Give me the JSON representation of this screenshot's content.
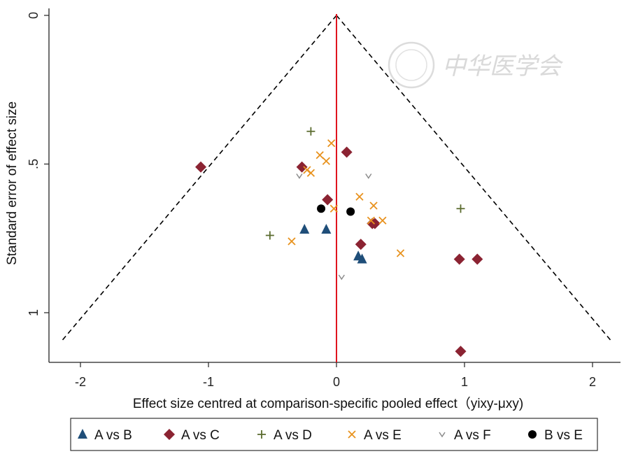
{
  "chart_data": {
    "type": "scatter",
    "title": "",
    "xlabel": "Effect size centred at comparison-specific pooled effect（yixy-μxy)",
    "ylabel": "Standard error of effect size",
    "xlim": [
      -2.2,
      2.2
    ],
    "ylim": [
      0,
      1.17
    ],
    "y_reversed": true,
    "x_ticks": [
      {
        "v": -2,
        "label": "-2"
      },
      {
        "v": -1,
        "label": "-1"
      },
      {
        "v": 0,
        "label": "0"
      },
      {
        "v": 1,
        "label": "1"
      },
      {
        "v": 2,
        "label": "2"
      }
    ],
    "y_ticks": [
      {
        "v": 0,
        "label": "0"
      },
      {
        "v": 0.5,
        "label": ".5"
      },
      {
        "v": 1,
        "label": "1"
      }
    ],
    "reference_line": {
      "x": 0,
      "color": "#e0141e"
    },
    "funnel": {
      "apex": [
        0,
        0
      ],
      "base_se": 1.1,
      "z": 1.96,
      "style": "dashed"
    },
    "legend_position": "bottom",
    "watermark": "中华医学会",
    "series": [
      {
        "name": "A vs B",
        "marker": "triangle",
        "color": "#1f4e79",
        "points": [
          [
            -0.25,
            0.72
          ],
          [
            -0.08,
            0.72
          ],
          [
            0.17,
            0.81
          ],
          [
            0.2,
            0.82
          ]
        ]
      },
      {
        "name": "A vs C",
        "marker": "diamond",
        "color": "#8b2332",
        "points": [
          [
            -1.06,
            0.51
          ],
          [
            -0.27,
            0.51
          ],
          [
            0.08,
            0.46
          ],
          [
            -0.07,
            0.62
          ],
          [
            0.28,
            0.7
          ],
          [
            0.3,
            0.7
          ],
          [
            0.19,
            0.77
          ],
          [
            0.96,
            0.82
          ],
          [
            1.1,
            0.82
          ],
          [
            0.97,
            1.13
          ]
        ]
      },
      {
        "name": "A vs D",
        "marker": "plus",
        "color": "#5a6b2e",
        "points": [
          [
            -0.2,
            0.39
          ],
          [
            -0.52,
            0.74
          ],
          [
            0.97,
            0.65
          ]
        ]
      },
      {
        "name": "A vs E",
        "marker": "x",
        "color": "#e8921e",
        "points": [
          [
            -0.04,
            0.43
          ],
          [
            -0.13,
            0.47
          ],
          [
            -0.08,
            0.49
          ],
          [
            -0.23,
            0.52
          ],
          [
            -0.2,
            0.53
          ],
          [
            0.18,
            0.61
          ],
          [
            0.29,
            0.64
          ],
          [
            -0.02,
            0.65
          ],
          [
            0.27,
            0.69
          ],
          [
            0.36,
            0.69
          ],
          [
            -0.35,
            0.76
          ],
          [
            0.5,
            0.8
          ]
        ]
      },
      {
        "name": "A vs F",
        "marker": "v",
        "color": "#8c8c8c",
        "points": [
          [
            -0.29,
            0.54
          ],
          [
            0.25,
            0.54
          ],
          [
            0.04,
            0.88
          ]
        ]
      },
      {
        "name": "B vs E",
        "marker": "circle",
        "color": "#000000",
        "points": [
          [
            -0.12,
            0.65
          ],
          [
            0.11,
            0.66
          ]
        ]
      }
    ]
  }
}
